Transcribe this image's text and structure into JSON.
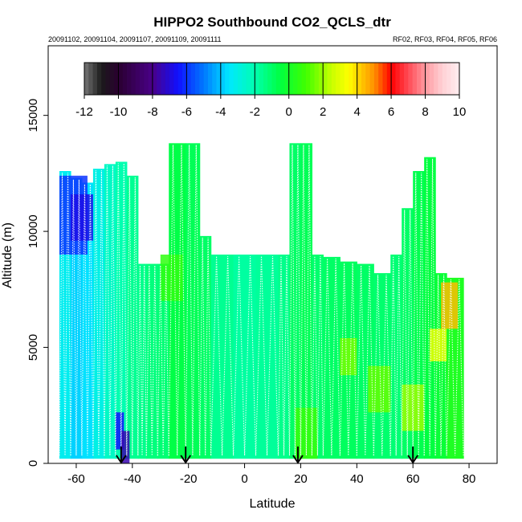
{
  "chart_data": {
    "type": "heatmap",
    "title": "HIPPO2 Southbound CO2_QCLS_dtr",
    "subtitle_left": "20091102, 20091104, 20091107, 20091109, 20091111",
    "subtitle_right": "RF02, RF03, RF04, RF05, RF06",
    "xlabel": "Latitude",
    "ylabel": "Altitude (m)",
    "xlim": [
      -70,
      90
    ],
    "ylim": [
      0,
      18000
    ],
    "xticks": [
      -60,
      -40,
      -20,
      0,
      20,
      40,
      60,
      80
    ],
    "yticks": [
      0,
      5000,
      10000,
      15000
    ],
    "colorbar": {
      "range": [
        -12,
        10
      ],
      "ticks": [
        -12,
        -10,
        -8,
        -6,
        -4,
        -2,
        0,
        2,
        4,
        6,
        8,
        10
      ],
      "placement": "top-inside"
    },
    "flight_markers_latitude": [
      -44,
      -21,
      19,
      60
    ],
    "profile_columns": [
      {
        "x": [
          -66,
          -62
        ],
        "top": 12600,
        "value": -3.2
      },
      {
        "x": [
          -62,
          -58
        ],
        "top": 12300,
        "value": -3.8
      },
      {
        "x": [
          -58,
          -54
        ],
        "top": 12100,
        "value": -3.6
      },
      {
        "x": [
          -54,
          -50
        ],
        "top": 12700,
        "value": -3.0
      },
      {
        "x": [
          -50,
          -46
        ],
        "top": 12900,
        "value": -2.4
      },
      {
        "x": [
          -46,
          -42
        ],
        "top": 13000,
        "value": -2.0
      },
      {
        "x": [
          -42,
          -38
        ],
        "top": 12400,
        "value": -1.6
      },
      {
        "x": [
          -38,
          -35
        ],
        "top": 8600,
        "value": -1.5
      },
      {
        "x": [
          -35,
          -31
        ],
        "top": 8600,
        "value": -1.3
      },
      {
        "x": [
          -31,
          -27
        ],
        "top": 8600,
        "value": -1.2
      },
      {
        "x": [
          -27,
          -21
        ],
        "top": 13800,
        "value": -0.6
      },
      {
        "x": [
          -21,
          -16
        ],
        "top": 13800,
        "value": -0.8
      },
      {
        "x": [
          -16,
          -12
        ],
        "top": 9800,
        "value": -1.0
      },
      {
        "x": [
          -12,
          -4
        ],
        "top": 9000,
        "value": -1.6
      },
      {
        "x": [
          -4,
          4
        ],
        "top": 9000,
        "value": -1.8
      },
      {
        "x": [
          4,
          12
        ],
        "top": 9000,
        "value": -1.7
      },
      {
        "x": [
          12,
          16
        ],
        "top": 9000,
        "value": -1.5
      },
      {
        "x": [
          16,
          20
        ],
        "top": 13800,
        "value": -1.0
      },
      {
        "x": [
          20,
          24
        ],
        "top": 13800,
        "value": -0.8
      },
      {
        "x": [
          24,
          28
        ],
        "top": 9000,
        "value": -1.1
      },
      {
        "x": [
          28,
          34
        ],
        "top": 8900,
        "value": -1.0
      },
      {
        "x": [
          34,
          40
        ],
        "top": 8700,
        "value": -0.9
      },
      {
        "x": [
          40,
          46
        ],
        "top": 8600,
        "value": -1.0
      },
      {
        "x": [
          46,
          52
        ],
        "top": 8200,
        "value": -1.1
      },
      {
        "x": [
          52,
          56
        ],
        "top": 9000,
        "value": -1.2
      },
      {
        "x": [
          56,
          60
        ],
        "top": 11000,
        "value": -1.0
      },
      {
        "x": [
          60,
          64
        ],
        "top": 12600,
        "value": -0.7
      },
      {
        "x": [
          64,
          68
        ],
        "top": 13200,
        "value": -0.5
      },
      {
        "x": [
          68,
          72
        ],
        "top": 8200,
        "value": -0.3
      },
      {
        "x": [
          72,
          78
        ],
        "top": 8000,
        "value": 0.2
      }
    ],
    "highlights": [
      {
        "x": [
          -66,
          -56
        ],
        "y": [
          9000,
          12400
        ],
        "value": -6.0
      },
      {
        "x": [
          -62,
          -54
        ],
        "y": [
          9600,
          11600
        ],
        "value": -6.8
      },
      {
        "x": [
          -46,
          -43
        ],
        "y": [
          600,
          2200
        ],
        "value": -6.5
      },
      {
        "x": [
          -44,
          -41
        ],
        "y": [
          0,
          1400
        ],
        "value": -7.5
      },
      {
        "x": [
          70,
          76
        ],
        "y": [
          5800,
          7800
        ],
        "value": 4.4
      },
      {
        "x": [
          66,
          72
        ],
        "y": [
          4400,
          5800
        ],
        "value": 3.2
      },
      {
        "x": [
          34,
          40
        ],
        "y": [
          3800,
          5400
        ],
        "value": 1.6
      },
      {
        "x": [
          44,
          52
        ],
        "y": [
          2200,
          4200
        ],
        "value": 1.4
      },
      {
        "x": [
          56,
          64
        ],
        "y": [
          1400,
          3400
        ],
        "value": 2.0
      },
      {
        "x": [
          -30,
          -22
        ],
        "y": [
          7000,
          9000
        ],
        "value": 0.6
      },
      {
        "x": [
          18,
          26
        ],
        "y": [
          200,
          2400
        ],
        "value": 0.8
      }
    ]
  }
}
